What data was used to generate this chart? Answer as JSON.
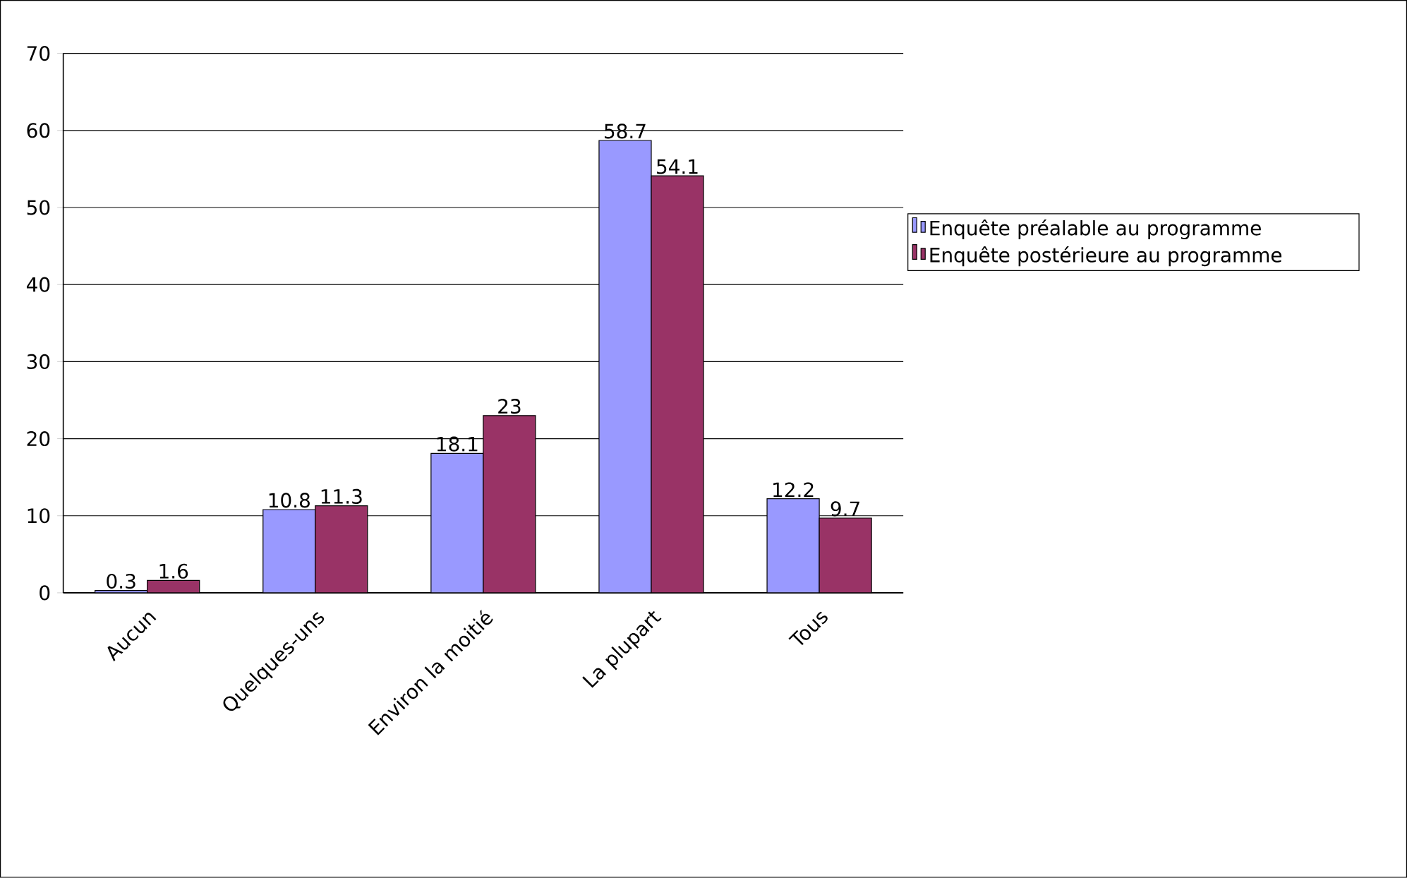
{
  "chart_data": {
    "type": "bar",
    "categories": [
      "Aucun",
      "Quelques-uns",
      "Environ la moitié",
      "La plupart",
      "Tous"
    ],
    "series": [
      {
        "name": "Enquête préalable au programme",
        "color": "#9999ff",
        "values": [
          0.3,
          10.8,
          18.1,
          58.7,
          12.2
        ]
      },
      {
        "name": "Enquête postérieure au programme",
        "color": "#993366",
        "values": [
          1.6,
          11.3,
          23,
          54.1,
          9.7
        ]
      }
    ],
    "ylim": [
      0,
      70
    ],
    "yticks": [
      0,
      10,
      20,
      30,
      40,
      50,
      60,
      70
    ],
    "grid": "y",
    "legend": "right",
    "data_labels": true
  }
}
